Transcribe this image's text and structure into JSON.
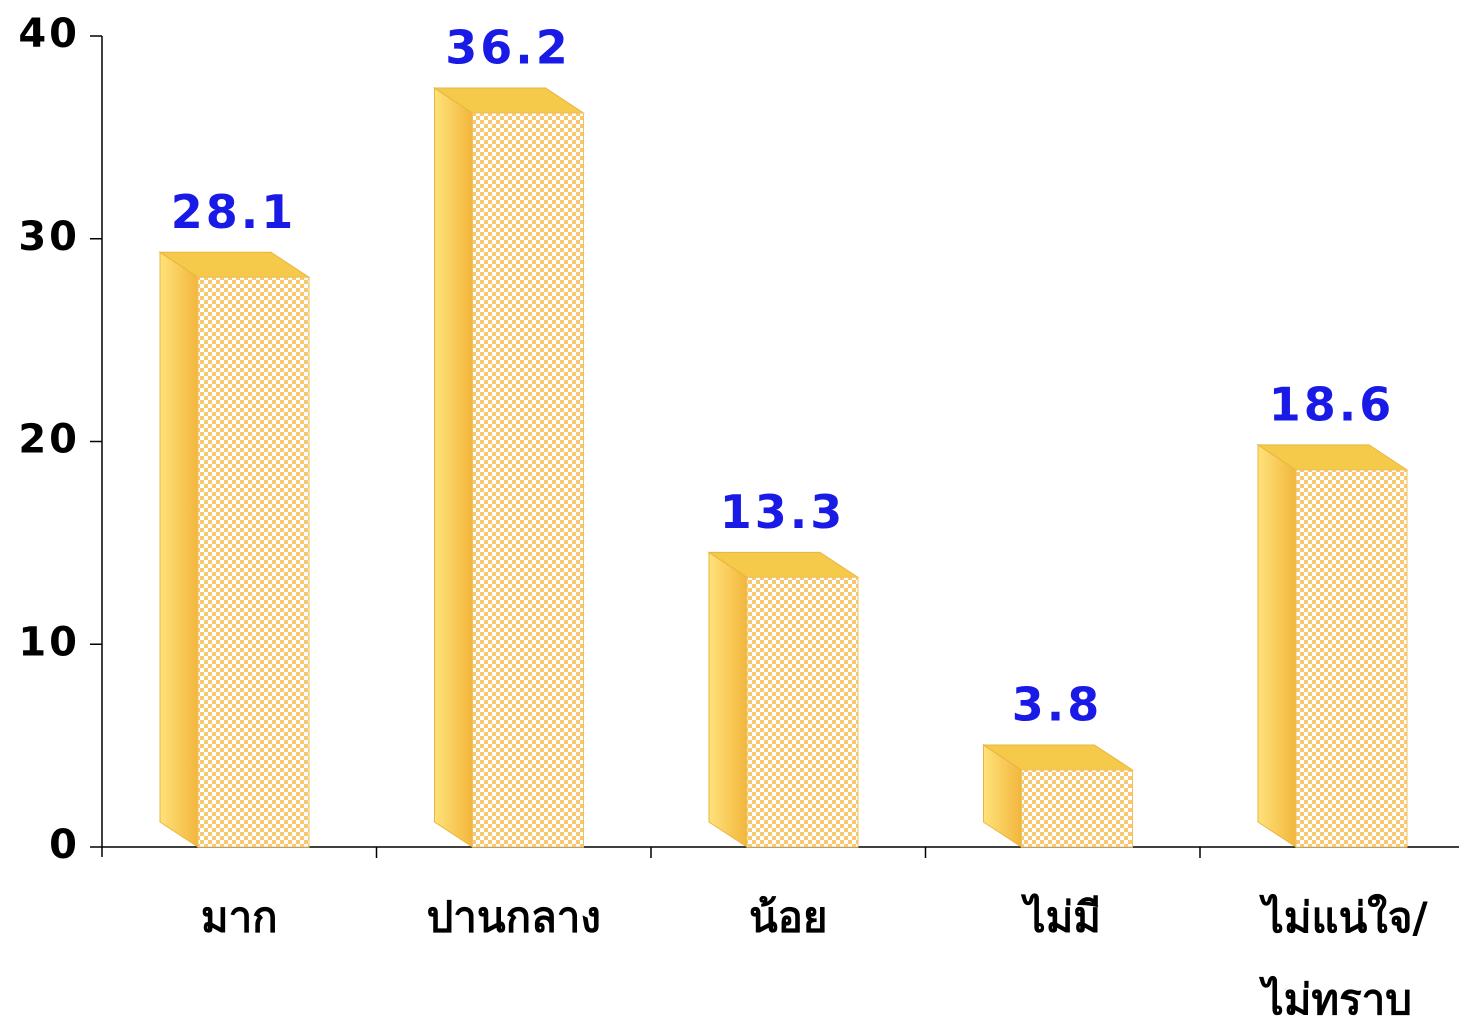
{
  "chart_data": {
    "type": "bar",
    "categories": [
      "มาก",
      "ปานกลาง",
      "น้อย",
      "ไม่มี",
      "ไม่แน่ใจ/ไม่ทราบ"
    ],
    "values": [
      28.1,
      36.2,
      13.3,
      3.8,
      18.6
    ],
    "color": "#f5c94a",
    "ylim": [
      0,
      40
    ],
    "yticks": [
      0,
      10,
      20,
      30,
      40
    ],
    "grid": false
  }
}
